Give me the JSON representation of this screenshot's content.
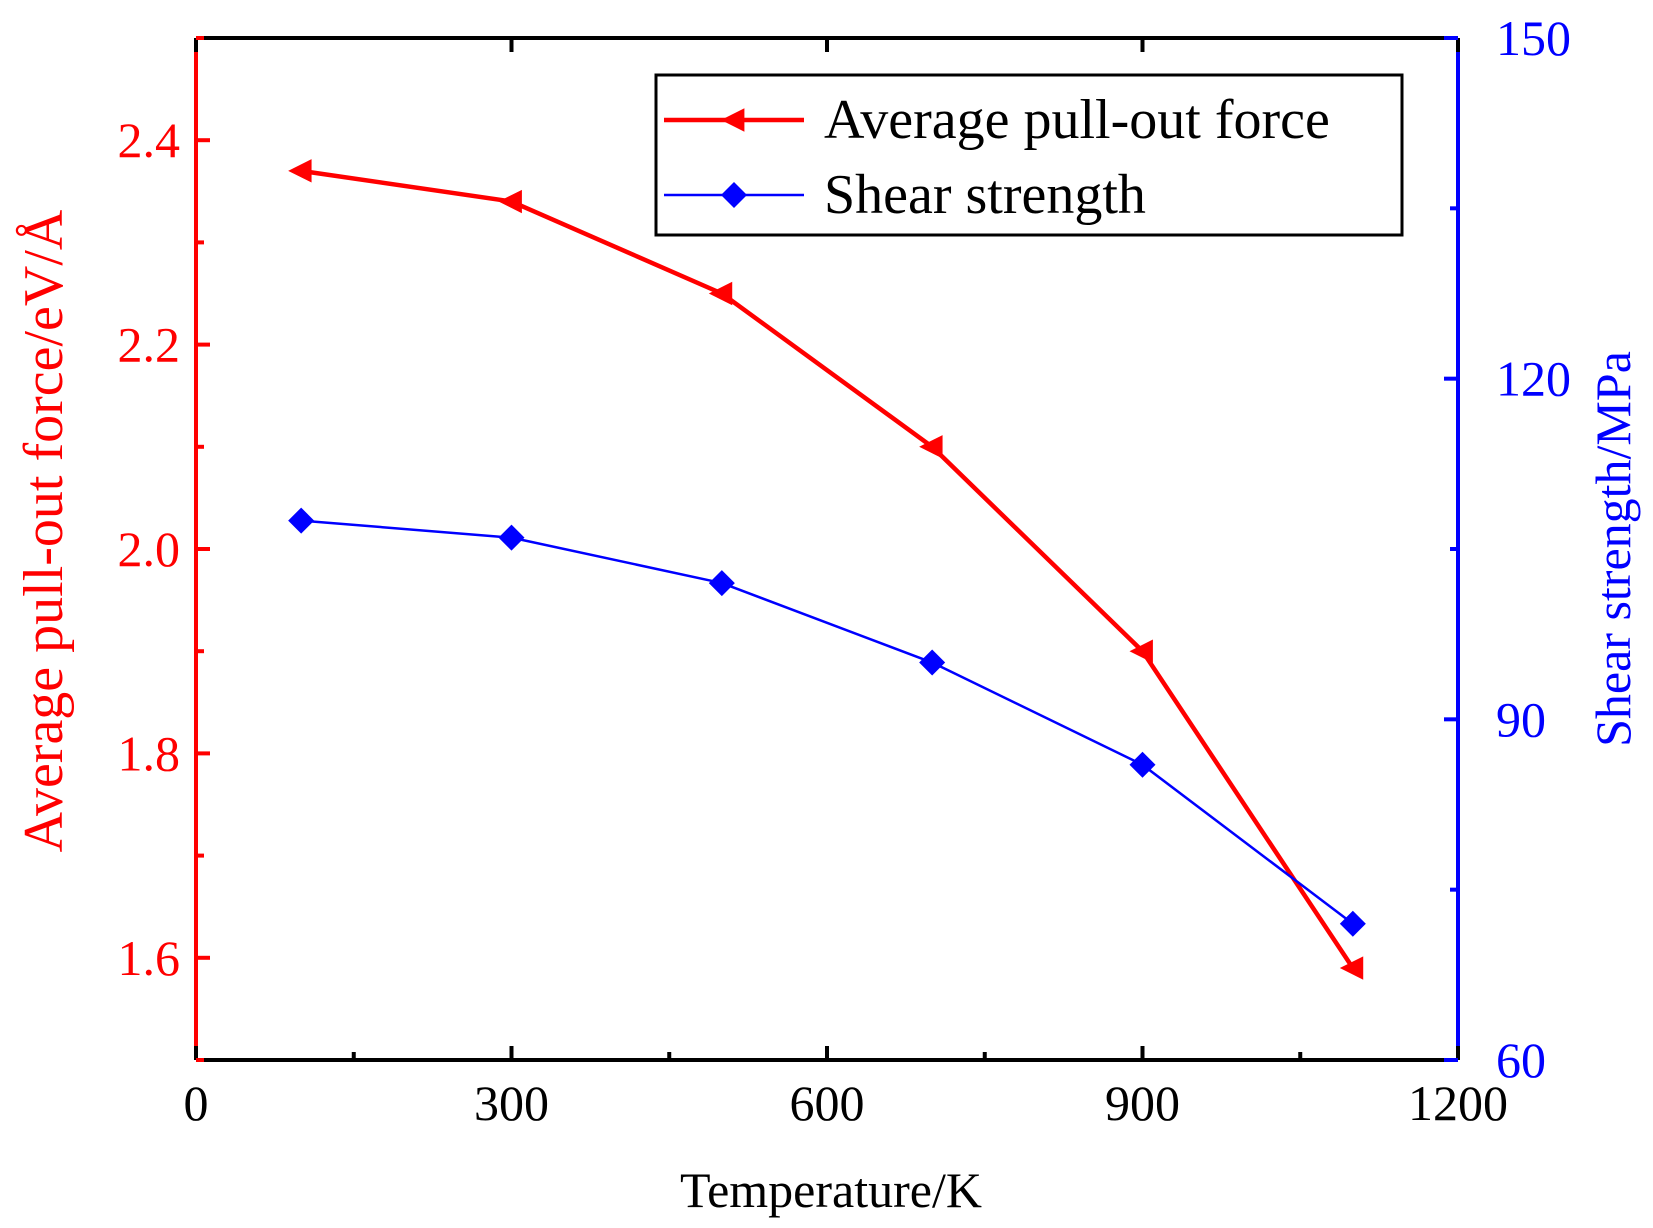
{
  "chart_data": {
    "type": "line",
    "title": "",
    "xlabel": "Temperature/K",
    "ylabel": "Average pull-out force/eV/Å",
    "y2label": "Shear strength/MPa",
    "xlim": [
      0,
      1200
    ],
    "ylim": [
      1.5,
      2.5
    ],
    "y2lim": [
      60,
      150
    ],
    "x_ticks": [
      "0",
      "300",
      "600",
      "900",
      "1200"
    ],
    "y_ticks": [
      "1.6",
      "1.8",
      "2.0",
      "2.2",
      "2.4"
    ],
    "y2_ticks": [
      "60",
      "90",
      "120",
      "150"
    ],
    "grid": false,
    "legend_position": "top-right",
    "x": [
      100,
      300,
      500,
      700,
      900,
      1100
    ],
    "series": [
      {
        "name": "Average pull-out force",
        "axis": "left",
        "marker": "left-triangle",
        "color": "#ff0000",
        "values": [
          2.37,
          2.34,
          2.25,
          2.1,
          1.9,
          1.59
        ]
      },
      {
        "name": "Shear strength",
        "axis": "right",
        "marker": "diamond",
        "color": "#0000ff",
        "values": [
          107.5,
          106.0,
          102.0,
          95.0,
          86.0,
          72.0
        ]
      }
    ]
  }
}
